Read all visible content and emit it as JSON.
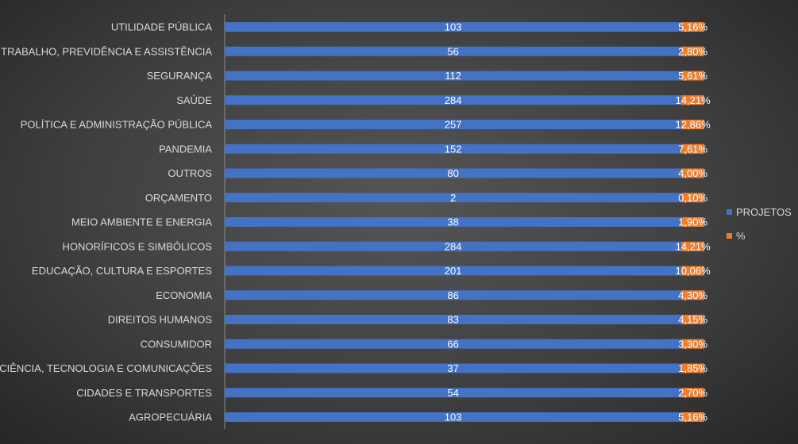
{
  "chart_data": {
    "type": "bar",
    "orientation": "horizontal",
    "stacked": "percent",
    "categories": [
      "UTILIDADE PÚBLICA",
      "TRABALHO, PREVIDÊNCIA E ASSISTÊNCIA",
      "SEGURANÇA",
      "SAÚDE",
      "POLÍTICA E ADMINISTRAÇÃO PÚBLICA",
      "PANDEMIA",
      "OUTROS",
      "ORÇAMENTO",
      "MEIO AMBIENTE E ENERGIA",
      "HONORÍFICOS E SIMBÓLICOS",
      "EDUCAÇÃO, CULTURA E ESPORTES",
      "ECONOMIA",
      "DIREITOS HUMANOS",
      "CONSUMIDOR",
      "CIÊNCIA, TECNOLOGIA E COMUNICAÇÕES",
      "CIDADES E TRANSPORTES",
      "AGROPECUÁRIA"
    ],
    "series": [
      {
        "name": "PROJETOS",
        "color": "#4472c4",
        "values": [
          103,
          56,
          112,
          284,
          257,
          152,
          80,
          2,
          38,
          284,
          201,
          86,
          83,
          66,
          37,
          54,
          103
        ],
        "labels": [
          "103",
          "56",
          "112",
          "284",
          "257",
          "152",
          "80",
          "2",
          "38",
          "284",
          "201",
          "86",
          "83",
          "66",
          "37",
          "54",
          "103"
        ]
      },
      {
        "name": "%",
        "color": "#ed7d31",
        "values": [
          5.16,
          2.8,
          5.61,
          14.21,
          12.86,
          7.61,
          4.0,
          0.1,
          1.9,
          14.21,
          10.06,
          4.3,
          4.15,
          3.3,
          1.85,
          2.7,
          5.16
        ],
        "labels": [
          "5,16%",
          "2,80%",
          "5,61%",
          "14,21%",
          "12,86%",
          "7,61%",
          "4,00%",
          "0,10%",
          "1,90%",
          "14,21%",
          "10,06%",
          "4,30%",
          "4,15%",
          "3,30%",
          "1,85%",
          "2,70%",
          "5,16%"
        ]
      }
    ],
    "legend_position": "right",
    "grid": false
  }
}
